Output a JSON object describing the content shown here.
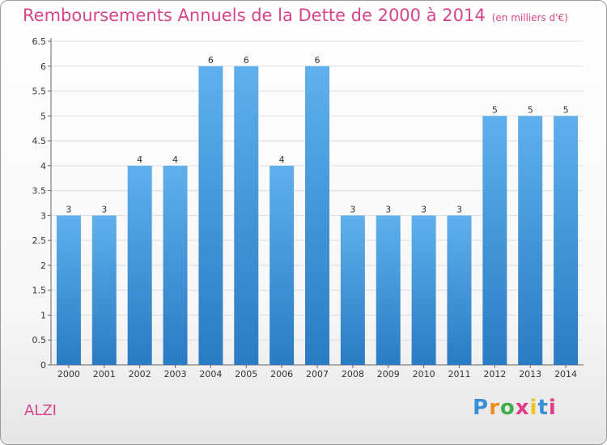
{
  "chart_data": {
    "type": "bar",
    "title": "Remboursements Annuels de la Dette de 2000 à 2014",
    "unit": "(en milliers d'€)",
    "categories": [
      "2000",
      "2001",
      "2002",
      "2003",
      "2004",
      "2005",
      "2006",
      "2007",
      "2008",
      "2009",
      "2010",
      "2011",
      "2012",
      "2013",
      "2014"
    ],
    "values": [
      3,
      3,
      4,
      4,
      6,
      6,
      4,
      6,
      3,
      3,
      3,
      3,
      5,
      5,
      5
    ],
    "y_ticks": [
      "0",
      "0.5",
      "1",
      "1.5",
      "2",
      "2.5",
      "3",
      "3.5",
      "4",
      "4.5",
      "5",
      "5.5",
      "6",
      "6.5"
    ],
    "ylim": [
      0,
      6.5
    ],
    "grid": "horizontal",
    "colors": {
      "bar": "#4f9fe0",
      "bar_dark": "#2a7bc3",
      "title": "#d6458a"
    }
  },
  "commune": "ALZI",
  "logo": {
    "text": "Proxiti",
    "letter_colors": [
      "#3b8fd6",
      "#f08a1c",
      "#3fae49",
      "#e23b8a",
      "#f0c419",
      "#3b8fd6",
      "#e23b8a"
    ]
  }
}
